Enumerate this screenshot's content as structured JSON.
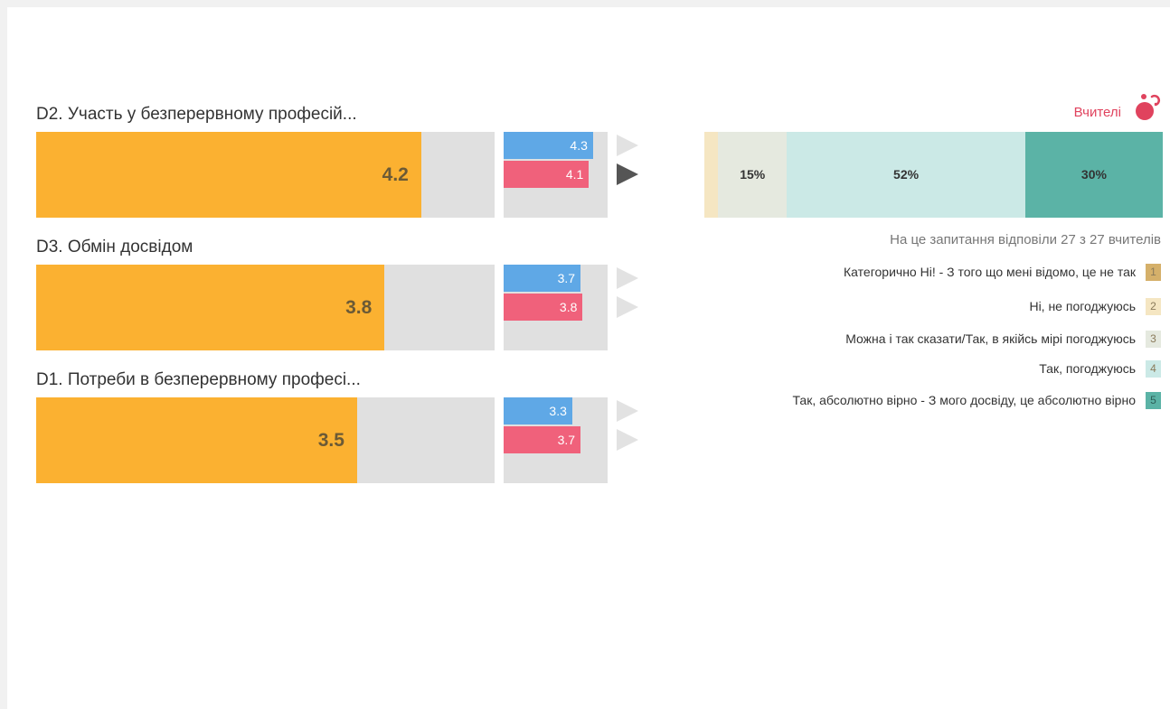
{
  "questions": [
    {
      "title": "D2. Участь у безперервному професій...",
      "value": 4.2,
      "compare_blue": 4.3,
      "compare_red": 4.1,
      "active": true
    },
    {
      "title": "D3. Обмін досвідом",
      "value": 3.8,
      "compare_blue": 3.7,
      "compare_red": 3.8,
      "active": false
    },
    {
      "title": "D1. Потреби в безперервному професі...",
      "value": 3.5,
      "compare_blue": 3.3,
      "compare_red": 3.7,
      "active": false
    }
  ],
  "scale": {
    "min": 0,
    "max": 5
  },
  "group": {
    "label": "Вчителі",
    "icon": "teachers-icon",
    "color": "#e0435e"
  },
  "distribution": {
    "segments": [
      {
        "level": 1,
        "percent": 0,
        "label": ""
      },
      {
        "level": 2,
        "percent": 3,
        "label": ""
      },
      {
        "level": 3,
        "percent": 15,
        "label": "15%"
      },
      {
        "level": 4,
        "percent": 52,
        "label": "52%"
      },
      {
        "level": 5,
        "percent": 30,
        "label": "30%"
      }
    ],
    "response_note": "На це запитання відповіли 27 з 27 вчителів"
  },
  "legend": [
    {
      "text": "Категорично Ні! - З того що мені відомо, це не так",
      "code": "1",
      "color": "#d5b06a"
    },
    {
      "text": "Ні, не погоджуюсь",
      "code": "2",
      "color": "#f5e6c2"
    },
    {
      "text": "Можна і так сказати/Так, в якійсь мірі погоджуюсь",
      "code": "3",
      "color": "#e5e9df"
    },
    {
      "text": "Так, погоджуюсь",
      "code": "4",
      "color": "#cbe9e6"
    },
    {
      "text": "Так, абсолютно вірно - З мого досвіду, це абсолютно вірно",
      "code": "5",
      "color": "#5bb3a6"
    }
  ],
  "chart_data": [
    {
      "type": "bar",
      "categories": [
        "D2. Участь у безперервному професій...",
        "D3. Обмін досвідом",
        "D1. Потреби в безперервному професі..."
      ],
      "series": [
        {
          "values": [
            4.2,
            3.8,
            3.5
          ]
        },
        {
          "values": [
            4.3,
            3.7,
            3.3
          ]
        },
        {
          "values": [
            4.1,
            3.8,
            3.7
          ]
        }
      ],
      "xlim": [
        0,
        5
      ]
    },
    {
      "type": "bar",
      "categories": [
        "1",
        "2",
        "3",
        "4",
        "5"
      ],
      "values": [
        0,
        3,
        15,
        52,
        30
      ],
      "stacked": true
    }
  ]
}
